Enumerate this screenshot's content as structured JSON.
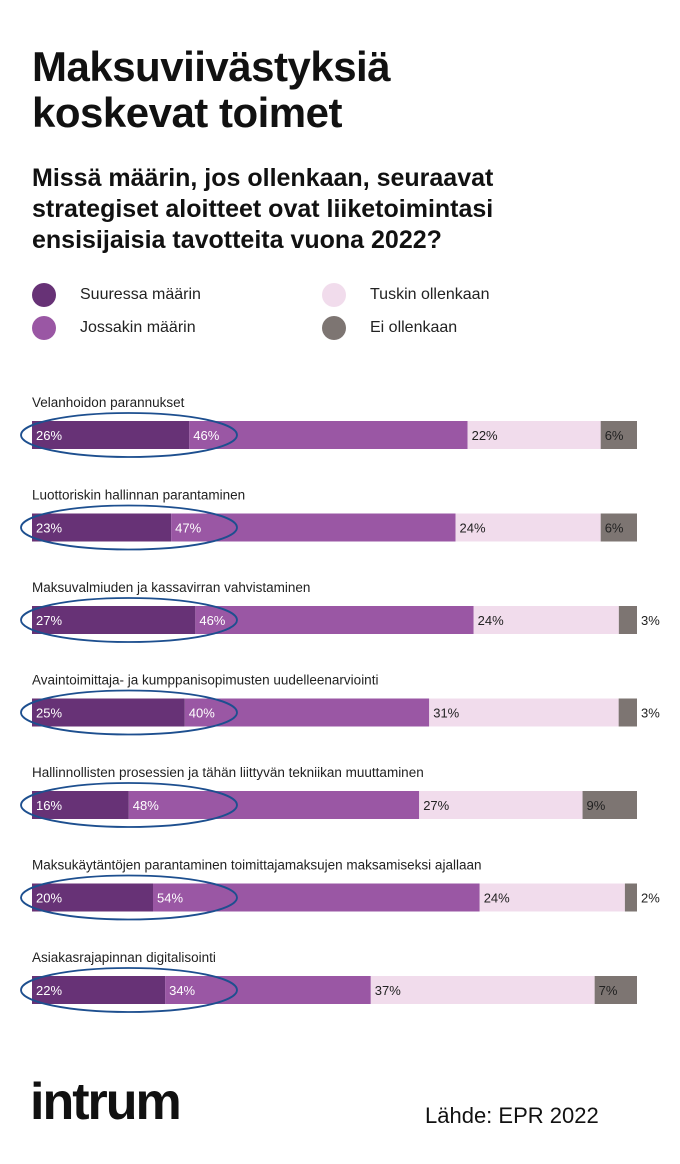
{
  "title": "Maksuviivästyksiä\nkoskevat toimet",
  "subtitle": "Missä määrin, jos ollenkaan, seuraavat\nstrategiset aloitteet ovat liiketoimintasi\nensisijaisia tavotteita vuona 2022?",
  "legend": [
    {
      "label": "Suuressa määrin",
      "color": "#673276"
    },
    {
      "label": "Jossakin määrin",
      "color": "#9a57a4"
    },
    {
      "label": "Tuskin ollenkaan",
      "color": "#f1dcec"
    },
    {
      "label": "Ei ollenkaan",
      "color": "#7d7572"
    }
  ],
  "chart_data": {
    "type": "bar",
    "orientation": "horizontal",
    "stacked": true,
    "unit": "%",
    "categories": [
      "Velanhoidon parannukset",
      "Luottoriskin hallinnan parantaminen",
      "Maksuvalmiuden ja kassavirran vahvistaminen",
      "Avaintoimittaja- ja kumppanisopimusten uudelleenarviointi",
      "Hallinnollisten prosessien ja tähän liittyvän tekniikan muuttaminen",
      "Maksukäytäntöjen parantaminen toimittajamaksujen maksamiseksi ajallaan",
      "Asiakasrajapinnan digitalisointi"
    ],
    "series": [
      {
        "name": "Suuressa määrin",
        "color": "#673276",
        "values": [
          26,
          23,
          27,
          25,
          16,
          20,
          22
        ]
      },
      {
        "name": "Jossakin määrin",
        "color": "#9a57a4",
        "values": [
          46,
          47,
          46,
          40,
          48,
          54,
          34
        ]
      },
      {
        "name": "Tuskin ollenkaan",
        "color": "#f1dcec",
        "values": [
          22,
          24,
          24,
          31,
          27,
          24,
          37
        ]
      },
      {
        "name": "Ei ollenkaan",
        "color": "#7d7572",
        "values": [
          6,
          6,
          3,
          3,
          9,
          2,
          7
        ]
      }
    ],
    "highlight": "ellipse around Suuressa määrin + Jossakin määrin",
    "highlight_color": "#1d4f8f"
  },
  "logo": "intrum",
  "source": "Lähde: EPR 2022"
}
